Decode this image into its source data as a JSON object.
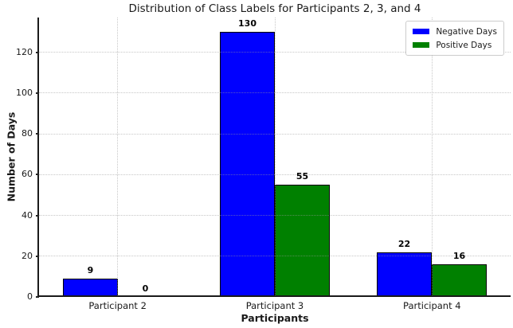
{
  "chart_data": {
    "type": "bar",
    "title": "Distribution of Class Labels for Participants 2, 3, and 4",
    "xlabel": "Participants",
    "ylabel": "Number of Days",
    "categories": [
      "Participant 2",
      "Participant 3",
      "Participant 4"
    ],
    "series": [
      {
        "name": "Negative Days",
        "color": "#0000ff",
        "values": [
          9,
          130,
          22
        ]
      },
      {
        "name": "Positive Days",
        "color": "#008000",
        "values": [
          0,
          55,
          16
        ]
      }
    ],
    "yticks": [
      0,
      20,
      40,
      60,
      80,
      100,
      120
    ],
    "ylim": [
      0,
      137
    ],
    "grid": true,
    "grid_style": "dotted",
    "bar_edge_color": "#000000",
    "value_labels_shown": true,
    "legend_position": "upper right",
    "background_color": "#ffffff"
  }
}
